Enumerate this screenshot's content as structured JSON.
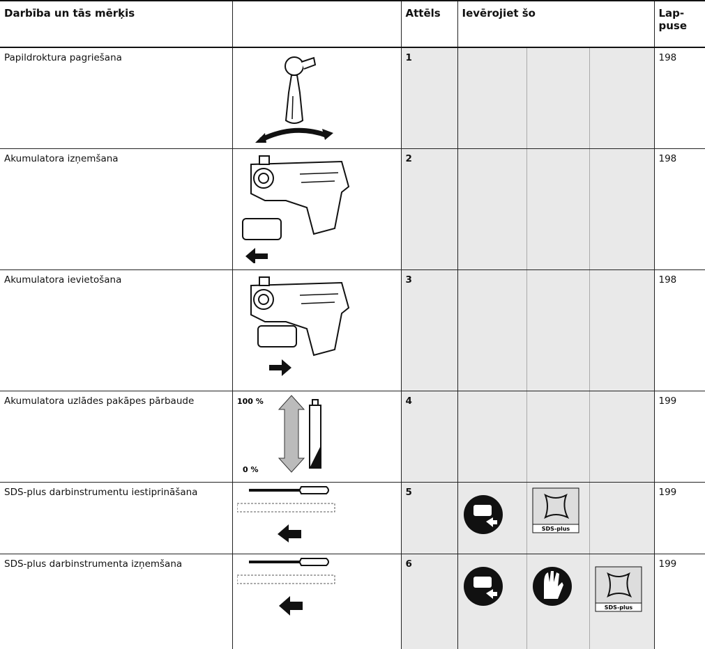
{
  "header": {
    "action": "Darbība un tās mērķis",
    "figure": "Attēls",
    "note": "Ievērojiet šo",
    "page": [
      "Lap-",
      "puse"
    ]
  },
  "rows": [
    {
      "action": "Papildroktura pagriešana",
      "figure": "1",
      "page": "198"
    },
    {
      "action": "Akumulatora izņemšana",
      "figure": "2",
      "page": "198"
    },
    {
      "action": "Akumulatora ievietošana",
      "figure": "3",
      "page": "198"
    },
    {
      "action": "Akumulatora uzlādes pakāpes pārbaude",
      "figure": "4",
      "page": "199",
      "icon_labels": [
        "100 %",
        "0 %"
      ]
    },
    {
      "action": "SDS-plus darbinstrumentu iestiprināšana",
      "figure": "5",
      "page": "199",
      "icon_labels": [
        "SDS-plus"
      ]
    },
    {
      "action": "SDS-plus darbinstrumenta izņemšana",
      "figure": "6",
      "page": "199",
      "icon_labels": [
        "SDS-plus"
      ]
    }
  ]
}
